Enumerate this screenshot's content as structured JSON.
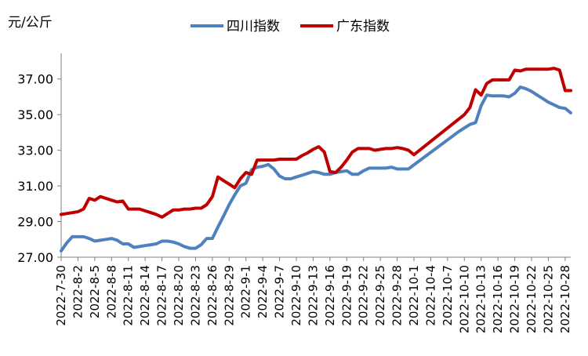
{
  "chart_data": {
    "type": "line",
    "ylabel": "元/公斤",
    "ylim": [
      27,
      38
    ],
    "yticks": [
      "27.00",
      "29.00",
      "31.00",
      "33.00",
      "35.00",
      "37.00"
    ],
    "grid": false,
    "legend_position": "top",
    "categories": [
      "2022-7-30",
      "2022-8-2",
      "2022-8-5",
      "2022-8-8",
      "2022-8-11",
      "2022-8-14",
      "2022-8-17",
      "2022-8-20",
      "2022-8-23",
      "2022-8-26",
      "2022-8-29",
      "2022-9-1",
      "2022-9-4",
      "2022-9-7",
      "2022-9-10",
      "2022-9-13",
      "2022-9-16",
      "2022-9-19",
      "2022-9-22",
      "2022-9-25",
      "2022-9-28",
      "2022-10-1",
      "2022-10-4",
      "2022-10-7",
      "2022-10-10",
      "2022-10-13",
      "2022-10-16",
      "2022-10-19",
      "2022-10-22",
      "2022-10-25",
      "2022-10-28"
    ],
    "x_start": "2022-7-30",
    "series": [
      {
        "name": "四川指数",
        "color": "#4f81bd",
        "points": [
          [
            0,
            27.35
          ],
          [
            1,
            27.8
          ],
          [
            2,
            28.15
          ],
          [
            3,
            28.15
          ],
          [
            4,
            28.15
          ],
          [
            5,
            28.05
          ],
          [
            6,
            27.9
          ],
          [
            7,
            27.95
          ],
          [
            8,
            28.0
          ],
          [
            9,
            28.05
          ],
          [
            10,
            27.95
          ],
          [
            11,
            27.75
          ],
          [
            12,
            27.75
          ],
          [
            13,
            27.55
          ],
          [
            14,
            27.6
          ],
          [
            15,
            27.65
          ],
          [
            16,
            27.7
          ],
          [
            17,
            27.75
          ],
          [
            18,
            27.9
          ],
          [
            19,
            27.9
          ],
          [
            20,
            27.85
          ],
          [
            21,
            27.75
          ],
          [
            22,
            27.6
          ],
          [
            23,
            27.5
          ],
          [
            24,
            27.5
          ],
          [
            25,
            27.7
          ],
          [
            26,
            28.05
          ],
          [
            27,
            28.05
          ],
          [
            28,
            28.7
          ],
          [
            29,
            29.3
          ],
          [
            30,
            29.95
          ],
          [
            31,
            30.5
          ],
          [
            32,
            31.0
          ],
          [
            33,
            31.15
          ],
          [
            34,
            31.9
          ],
          [
            35,
            32.05
          ],
          [
            36,
            32.1
          ],
          [
            37,
            32.2
          ],
          [
            38,
            31.95
          ],
          [
            39,
            31.55
          ],
          [
            40,
            31.4
          ],
          [
            41,
            31.4
          ],
          [
            42,
            31.5
          ],
          [
            43,
            31.6
          ],
          [
            44,
            31.7
          ],
          [
            45,
            31.8
          ],
          [
            46,
            31.75
          ],
          [
            47,
            31.65
          ],
          [
            48,
            31.65
          ],
          [
            49,
            31.75
          ],
          [
            50,
            31.8
          ],
          [
            51,
            31.85
          ],
          [
            52,
            31.65
          ],
          [
            53,
            31.65
          ],
          [
            54,
            31.85
          ],
          [
            55,
            32.0
          ],
          [
            56,
            32.0
          ],
          [
            57,
            32.0
          ],
          [
            58,
            32.0
          ],
          [
            59,
            32.05
          ],
          [
            60,
            31.95
          ],
          [
            61,
            31.95
          ],
          [
            62,
            31.95
          ],
          [
            71,
            34.05
          ],
          [
            72,
            34.25
          ],
          [
            73,
            34.45
          ],
          [
            74,
            34.55
          ],
          [
            75,
            35.5
          ],
          [
            76,
            36.1
          ],
          [
            77,
            36.05
          ],
          [
            78,
            36.05
          ],
          [
            79,
            36.05
          ],
          [
            80,
            36.0
          ],
          [
            81,
            36.2
          ],
          [
            82,
            36.55
          ],
          [
            83,
            36.45
          ],
          [
            84,
            36.3
          ],
          [
            85,
            36.1
          ],
          [
            86,
            35.9
          ],
          [
            87,
            35.7
          ],
          [
            88,
            35.55
          ],
          [
            89,
            35.4
          ],
          [
            90,
            35.35
          ],
          [
            91,
            35.1
          ]
        ]
      },
      {
        "name": "广东指数",
        "color": "#c00000",
        "points": [
          [
            0,
            29.4
          ],
          [
            1,
            29.45
          ],
          [
            2,
            29.5
          ],
          [
            3,
            29.55
          ],
          [
            4,
            29.7
          ],
          [
            5,
            30.3
          ],
          [
            6,
            30.2
          ],
          [
            7,
            30.4
          ],
          [
            8,
            30.3
          ],
          [
            9,
            30.2
          ],
          [
            10,
            30.1
          ],
          [
            11,
            30.15
          ],
          [
            12,
            29.7
          ],
          [
            13,
            29.7
          ],
          [
            14,
            29.7
          ],
          [
            15,
            29.6
          ],
          [
            16,
            29.5
          ],
          [
            17,
            29.4
          ],
          [
            18,
            29.25
          ],
          [
            19,
            29.45
          ],
          [
            20,
            29.65
          ],
          [
            21,
            29.65
          ],
          [
            22,
            29.7
          ],
          [
            23,
            29.7
          ],
          [
            24,
            29.75
          ],
          [
            25,
            29.75
          ],
          [
            26,
            29.95
          ],
          [
            27,
            30.4
          ],
          [
            28,
            31.5
          ],
          [
            29,
            31.3
          ],
          [
            30,
            31.1
          ],
          [
            31,
            30.9
          ],
          [
            32,
            31.4
          ],
          [
            33,
            31.75
          ],
          [
            34,
            31.65
          ],
          [
            35,
            32.45
          ],
          [
            36,
            32.45
          ],
          [
            37,
            32.45
          ],
          [
            38,
            32.45
          ],
          [
            39,
            32.5
          ],
          [
            40,
            32.5
          ],
          [
            41,
            32.5
          ],
          [
            42,
            32.5
          ],
          [
            43,
            32.7
          ],
          [
            44,
            32.85
          ],
          [
            45,
            33.05
          ],
          [
            46,
            33.2
          ],
          [
            47,
            32.9
          ],
          [
            48,
            31.8
          ],
          [
            49,
            31.75
          ],
          [
            50,
            32.05
          ],
          [
            51,
            32.45
          ],
          [
            52,
            32.9
          ],
          [
            53,
            33.1
          ],
          [
            54,
            33.1
          ],
          [
            55,
            33.1
          ],
          [
            56,
            33.0
          ],
          [
            57,
            33.05
          ],
          [
            58,
            33.1
          ],
          [
            59,
            33.1
          ],
          [
            60,
            33.15
          ],
          [
            61,
            33.1
          ],
          [
            62,
            33.0
          ],
          [
            63,
            32.75
          ],
          [
            72,
            35.0
          ],
          [
            73,
            35.4
          ],
          [
            74,
            36.4
          ],
          [
            75,
            36.1
          ],
          [
            76,
            36.75
          ],
          [
            77,
            36.95
          ],
          [
            78,
            36.95
          ],
          [
            79,
            36.95
          ],
          [
            80,
            36.95
          ],
          [
            81,
            37.5
          ],
          [
            82,
            37.45
          ],
          [
            83,
            37.55
          ],
          [
            84,
            37.55
          ],
          [
            85,
            37.55
          ],
          [
            86,
            37.55
          ],
          [
            87,
            37.55
          ],
          [
            88,
            37.6
          ],
          [
            89,
            37.5
          ],
          [
            90,
            36.35
          ],
          [
            91,
            36.35
          ]
        ]
      }
    ]
  }
}
